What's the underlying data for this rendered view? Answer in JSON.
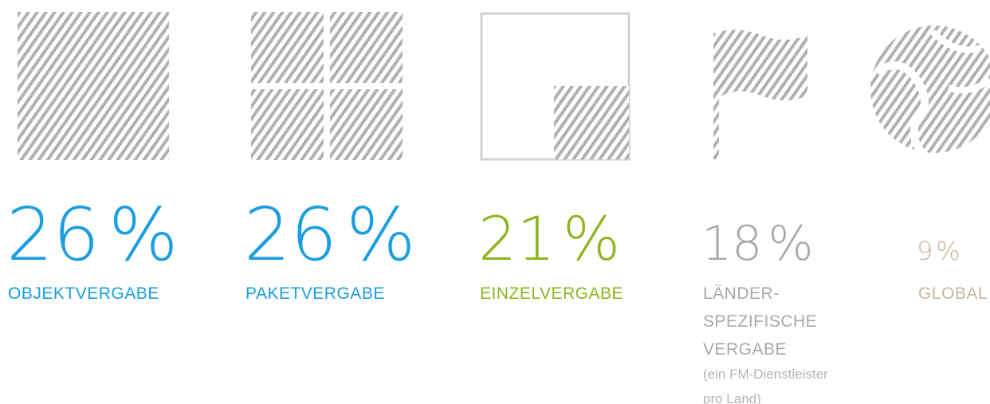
{
  "items": [
    {
      "percent": 26,
      "unit": "%",
      "label_lines": [
        "OBJEKTVERGABE"
      ],
      "color": "#1a9ee0",
      "size": 92
    },
    {
      "percent": 26,
      "unit": "%",
      "label_lines": [
        "PAKETVERGABE"
      ],
      "color": "#1a9ee0",
      "size": 92
    },
    {
      "percent": 21,
      "unit": "%",
      "label_lines": [
        "EINZELVERGABE"
      ],
      "color": "#8fb41e",
      "size": 76
    },
    {
      "percent": 18,
      "unit": "%",
      "label_lines": [
        "LÄNDER-",
        "SPEZIFISCHE",
        "VERGABE"
      ],
      "note_lines": [
        "(ein FM-Dienstleister",
        "pro Land)"
      ],
      "color": "#a8a8a8",
      "size": 60
    },
    {
      "percent": 9,
      "unit": "%",
      "label_lines": [
        "GLOBAL"
      ],
      "color": "#c5b79c",
      "size": 32
    }
  ]
}
